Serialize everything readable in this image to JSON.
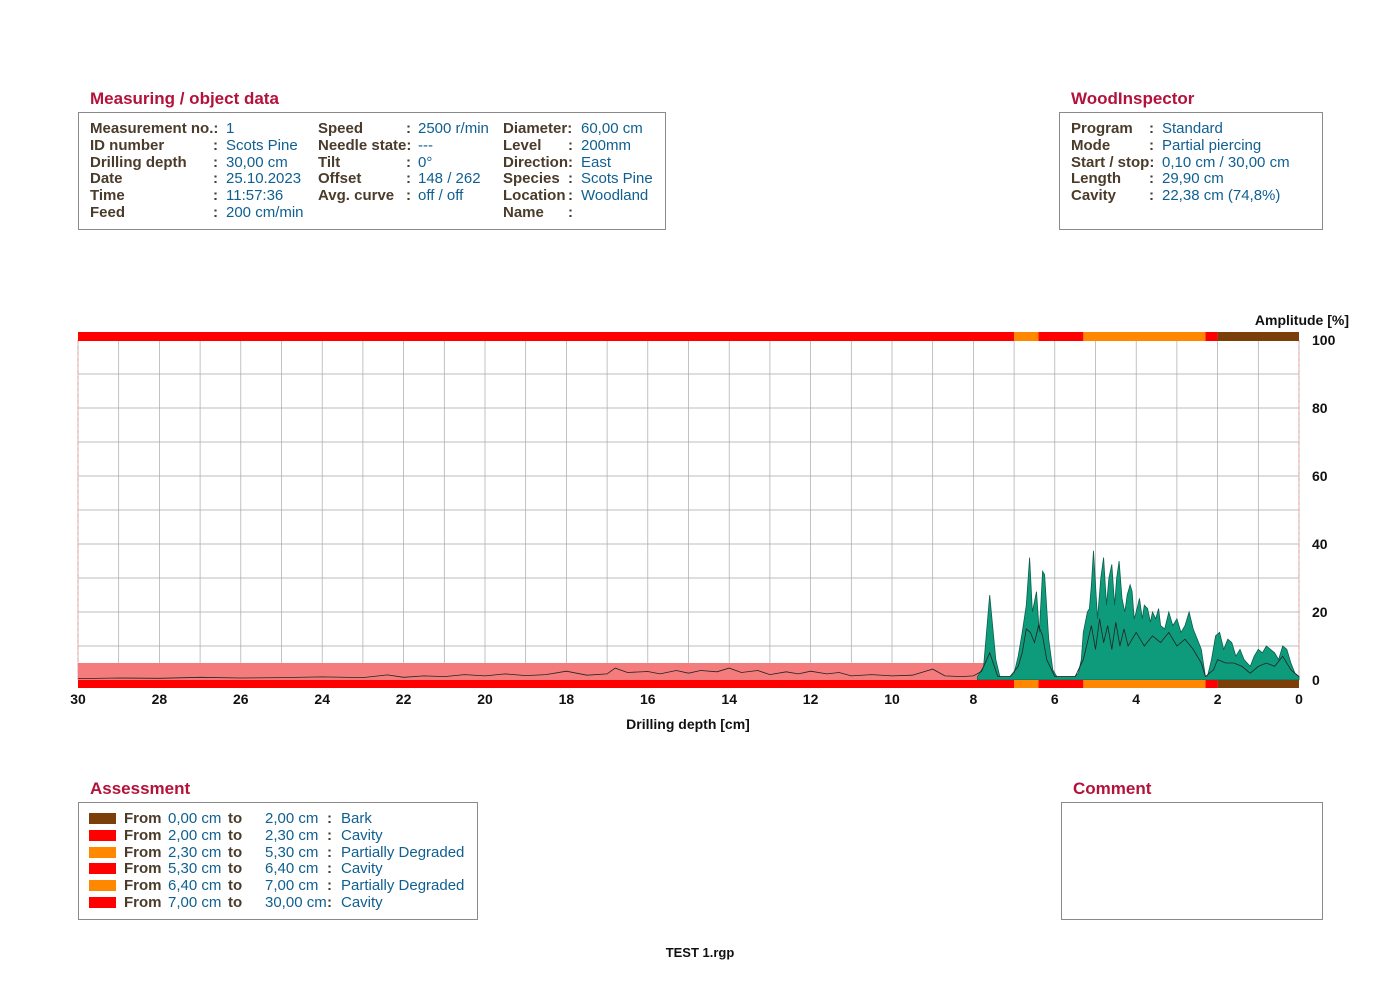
{
  "measuring": {
    "title": "Measuring / object data",
    "rows": [
      {
        "c1_label": "Measurement no.:",
        "c1_value": "1",
        "c2_label": "Speed",
        "c2_value": "2500 r/min",
        "c3_label": "Diameter:",
        "c3_value": "60,00 cm"
      },
      {
        "c1_label": "ID number",
        "c1_value": "Scots Pine",
        "c2_label": "Needle state:",
        "c2_value": "---",
        "c3_label": "Level",
        "c3_value": "200mm"
      },
      {
        "c1_label": "Drilling depth",
        "c1_value": "30,00 cm",
        "c2_label": "Tilt",
        "c2_value": "0°",
        "c3_label": "Direction:",
        "c3_value": "East"
      },
      {
        "c1_label": "Date",
        "c1_value": "25.10.2023",
        "c2_label": "Offset",
        "c2_value": "148 / 262",
        "c3_label": "Species",
        "c3_value": "Scots Pine"
      },
      {
        "c1_label": "Time",
        "c1_value": "11:57:36",
        "c2_label": "Avg. curve",
        "c2_value": "off / off",
        "c3_label": "Location",
        "c3_value": "Woodland"
      },
      {
        "c1_label": "Feed",
        "c1_value": "200 cm/min",
        "c2_label": "",
        "c2_value": "",
        "c3_label": "Name",
        "c3_value": ""
      }
    ]
  },
  "inspector": {
    "title": "WoodInspector",
    "rows": [
      {
        "label": "Program",
        "value": "Standard"
      },
      {
        "label": "Mode",
        "value": "Partial piercing"
      },
      {
        "label": "Start / stop:",
        "value": "0,10 cm / 30,00 cm"
      },
      {
        "label": "Length",
        "value": "29,90 cm"
      },
      {
        "label": "Cavity",
        "value": "22,38 cm (74,8%)"
      }
    ]
  },
  "assessment": {
    "title": "Assessment",
    "from_label": "From",
    "to_label": "to",
    "rows": [
      {
        "from": "0,00 cm",
        "to": "2,00 cm",
        "class": "Bark",
        "color": "#7b3f0a"
      },
      {
        "from": "2,00 cm",
        "to": "2,30 cm",
        "class": "Cavity",
        "color": "#ff0000"
      },
      {
        "from": "2,30 cm",
        "to": "5,30 cm",
        "class": "Partially Degraded",
        "color": "#ff8800"
      },
      {
        "from": "5,30 cm",
        "to": "6,40 cm",
        "class": "Cavity",
        "color": "#ff0000"
      },
      {
        "from": "6,40 cm",
        "to": "7,00 cm",
        "class": "Partially Degraded",
        "color": "#ff8800"
      },
      {
        "from": "7,00 cm",
        "to": "30,00 cm",
        "class": "Cavity",
        "color": "#ff0000"
      }
    ]
  },
  "comment": {
    "title": "Comment",
    "text": ""
  },
  "footer": {
    "filename": "TEST 1.rgp"
  },
  "colors": {
    "title_red": "#b3123a",
    "label_brown": "#4a3b2a",
    "value_blue": "#0f5f91",
    "feed_fill": "#0e9b7c",
    "drill_curve": "#222222",
    "band_pink": "#f47c7c"
  },
  "chart_data": {
    "type": "area",
    "xlabel": "Drilling depth [cm]",
    "ylabel": "Amplitude [%]",
    "xlim": [
      30,
      0
    ],
    "ylim": [
      0,
      100
    ],
    "x_ticks": [
      30,
      28,
      26,
      24,
      22,
      20,
      18,
      16,
      14,
      12,
      10,
      8,
      6,
      4,
      2,
      0
    ],
    "y_ticks": [
      0,
      20,
      40,
      60,
      80,
      100
    ],
    "grid": true,
    "assessment_bands": [
      {
        "from": 0,
        "to": 2,
        "class": "Bark",
        "color": "#7b3f0a"
      },
      {
        "from": 2,
        "to": 2.3,
        "class": "Cavity",
        "color": "#ff0000"
      },
      {
        "from": 2.3,
        "to": 5.3,
        "class": "Partially Degraded",
        "color": "#ff8800"
      },
      {
        "from": 5.3,
        "to": 6.4,
        "class": "Cavity",
        "color": "#ff0000"
      },
      {
        "from": 6.4,
        "to": 7,
        "class": "Partially Degraded",
        "color": "#ff8800"
      },
      {
        "from": 7,
        "to": 30,
        "class": "Cavity",
        "color": "#ff0000"
      }
    ],
    "highlight_band": {
      "x_from": 7.7,
      "x_to": 30,
      "y_from": 0,
      "y_to": 5
    },
    "series": [
      {
        "kind": "feed",
        "points": [
          [
            7.9,
            1
          ],
          [
            7.75,
            4
          ],
          [
            7.6,
            25
          ],
          [
            7.45,
            6
          ],
          [
            7.35,
            1
          ],
          [
            7.1,
            1
          ],
          [
            7.0,
            2
          ],
          [
            6.9,
            7
          ],
          [
            6.8,
            14
          ],
          [
            6.7,
            22
          ],
          [
            6.62,
            36
          ],
          [
            6.55,
            20
          ],
          [
            6.45,
            26
          ],
          [
            6.38,
            14
          ],
          [
            6.3,
            32
          ],
          [
            6.25,
            31
          ],
          [
            6.15,
            12
          ],
          [
            6.05,
            3
          ],
          [
            5.95,
            1
          ],
          [
            5.5,
            1
          ],
          [
            5.42,
            2
          ],
          [
            5.35,
            6
          ],
          [
            5.3,
            14
          ],
          [
            5.2,
            20
          ],
          [
            5.15,
            21
          ],
          [
            5.1,
            28
          ],
          [
            5.05,
            38
          ],
          [
            5.0,
            28
          ],
          [
            4.95,
            18
          ],
          [
            4.87,
            30
          ],
          [
            4.8,
            36
          ],
          [
            4.73,
            22
          ],
          [
            4.67,
            30
          ],
          [
            4.6,
            34
          ],
          [
            4.53,
            22
          ],
          [
            4.48,
            30
          ],
          [
            4.42,
            35
          ],
          [
            4.35,
            24
          ],
          [
            4.28,
            20
          ],
          [
            4.22,
            25
          ],
          [
            4.15,
            28
          ],
          [
            4.1,
            26
          ],
          [
            4.05,
            18
          ],
          [
            4.0,
            20
          ],
          [
            3.92,
            24
          ],
          [
            3.85,
            18
          ],
          [
            3.8,
            22
          ],
          [
            3.72,
            21
          ],
          [
            3.65,
            17
          ],
          [
            3.6,
            20
          ],
          [
            3.52,
            18
          ],
          [
            3.45,
            21
          ],
          [
            3.4,
            16
          ],
          [
            3.3,
            15
          ],
          [
            3.2,
            20
          ],
          [
            3.1,
            16
          ],
          [
            3.0,
            18
          ],
          [
            2.9,
            14
          ],
          [
            2.8,
            16
          ],
          [
            2.7,
            20
          ],
          [
            2.6,
            15
          ],
          [
            2.5,
            12
          ],
          [
            2.4,
            9
          ],
          [
            2.3,
            1
          ],
          [
            2.25,
            1
          ],
          [
            2.15,
            6
          ],
          [
            2.05,
            13
          ],
          [
            1.95,
            14
          ],
          [
            1.85,
            9
          ],
          [
            1.75,
            12
          ],
          [
            1.65,
            11
          ],
          [
            1.55,
            7
          ],
          [
            1.45,
            9
          ],
          [
            1.35,
            6
          ],
          [
            1.2,
            4
          ],
          [
            1.1,
            7
          ],
          [
            1.0,
            9
          ],
          [
            0.9,
            8
          ],
          [
            0.8,
            10
          ],
          [
            0.7,
            9
          ],
          [
            0.6,
            8
          ],
          [
            0.5,
            6
          ],
          [
            0.4,
            10
          ],
          [
            0.3,
            9
          ],
          [
            0.2,
            5
          ],
          [
            0.1,
            2
          ],
          [
            0.0,
            1
          ]
        ]
      },
      {
        "kind": "drill",
        "points": [
          [
            30,
            0.4
          ],
          [
            29,
            0.6
          ],
          [
            28,
            0.5
          ],
          [
            27,
            0.8
          ],
          [
            26,
            0.6
          ],
          [
            25,
            0.7
          ],
          [
            24,
            0.9
          ],
          [
            23,
            0.7
          ],
          [
            22.4,
            1.5
          ],
          [
            22,
            0.8
          ],
          [
            21.5,
            1.2
          ],
          [
            21,
            1.0
          ],
          [
            20.5,
            1.6
          ],
          [
            20,
            1.2
          ],
          [
            19.5,
            1.8
          ],
          [
            19,
            1.3
          ],
          [
            18.5,
            1.6
          ],
          [
            18,
            2.6
          ],
          [
            17.5,
            1.4
          ],
          [
            17,
            1.8
          ],
          [
            16.8,
            3.5
          ],
          [
            16.5,
            2.2
          ],
          [
            16,
            2.5
          ],
          [
            15.7,
            1.8
          ],
          [
            15.3,
            2.8
          ],
          [
            15,
            2.0
          ],
          [
            14.7,
            2.8
          ],
          [
            14.3,
            2.4
          ],
          [
            14,
            3.5
          ],
          [
            13.7,
            2.2
          ],
          [
            13.3,
            2.8
          ],
          [
            13,
            1.6
          ],
          [
            12.6,
            2.4
          ],
          [
            12.3,
            1.8
          ],
          [
            12,
            2.6
          ],
          [
            11.6,
            1.8
          ],
          [
            11.3,
            2.2
          ],
          [
            11,
            1.2
          ],
          [
            10.5,
            1.6
          ],
          [
            10,
            1.2
          ],
          [
            9.5,
            1.4
          ],
          [
            9,
            3.2
          ],
          [
            8.7,
            1.2
          ],
          [
            8.3,
            1.0
          ],
          [
            8,
            1.2
          ],
          [
            7.8,
            2.5
          ],
          [
            7.6,
            8
          ],
          [
            7.4,
            1
          ],
          [
            7.1,
            1
          ],
          [
            6.9,
            4
          ],
          [
            6.8,
            8
          ],
          [
            6.7,
            15
          ],
          [
            6.6,
            14
          ],
          [
            6.5,
            11
          ],
          [
            6.4,
            16
          ],
          [
            6.3,
            13
          ],
          [
            6.2,
            6
          ],
          [
            6.0,
            1
          ],
          [
            5.5,
            1
          ],
          [
            5.3,
            6
          ],
          [
            5.2,
            11
          ],
          [
            5.1,
            16
          ],
          [
            5.0,
            9
          ],
          [
            4.9,
            18
          ],
          [
            4.8,
            11
          ],
          [
            4.7,
            16
          ],
          [
            4.6,
            9
          ],
          [
            4.5,
            17
          ],
          [
            4.4,
            10
          ],
          [
            4.3,
            15
          ],
          [
            4.2,
            10
          ],
          [
            4.0,
            14
          ],
          [
            3.8,
            10
          ],
          [
            3.6,
            13
          ],
          [
            3.4,
            11
          ],
          [
            3.2,
            14
          ],
          [
            3.0,
            10
          ],
          [
            2.8,
            12
          ],
          [
            2.6,
            9
          ],
          [
            2.4,
            5
          ],
          [
            2.3,
            1
          ],
          [
            2.1,
            3
          ],
          [
            2.0,
            6
          ],
          [
            1.8,
            5
          ],
          [
            1.6,
            5
          ],
          [
            1.4,
            4
          ],
          [
            1.2,
            2
          ],
          [
            1.0,
            4
          ],
          [
            0.8,
            5
          ],
          [
            0.6,
            4
          ],
          [
            0.4,
            7
          ],
          [
            0.2,
            3
          ],
          [
            0.0,
            1
          ]
        ]
      }
    ]
  }
}
